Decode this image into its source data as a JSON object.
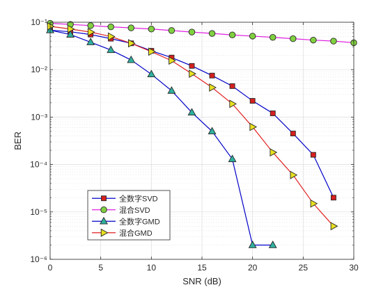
{
  "chart_data": {
    "type": "line",
    "xlabel": "SNR (dB)",
    "ylabel": "BER",
    "xlim": [
      0,
      30
    ],
    "ylim": [
      1e-06,
      0.1
    ],
    "yscale": "log",
    "grid": true,
    "minor_grid": true,
    "legend_position": "bottom-left",
    "x_ticks": [
      0,
      5,
      10,
      15,
      20,
      25,
      30
    ],
    "x_tick_labels": [
      "0",
      "5",
      "10",
      "15",
      "20",
      "25",
      "30"
    ],
    "y_ticks": [
      1e-06,
      1e-05,
      0.0001,
      0.001,
      0.01,
      0.1
    ],
    "y_tick_labels": [
      "10⁻⁶",
      "10⁻⁵",
      "10⁻⁴",
      "10⁻³",
      "10⁻²",
      "10⁻¹"
    ],
    "series": [
      {
        "name": "全数字SVD",
        "color": "#0000c8",
        "marker": "square",
        "marker_fill": "#d62020",
        "x": [
          0,
          2,
          4,
          6,
          8,
          10,
          12,
          14,
          16,
          18,
          20,
          22,
          24,
          26,
          28
        ],
        "y": [
          0.068,
          0.063,
          0.055,
          0.045,
          0.036,
          0.025,
          0.018,
          0.012,
          0.0075,
          0.0045,
          0.0022,
          0.0012,
          0.00045,
          0.00016,
          2e-05
        ]
      },
      {
        "name": "混合SVD",
        "color": "#e020e0",
        "marker": "circle",
        "marker_fill": "#80d040",
        "x": [
          0,
          2,
          4,
          6,
          8,
          10,
          12,
          14,
          16,
          18,
          20,
          22,
          24,
          26,
          28,
          30
        ],
        "y": [
          0.095,
          0.09,
          0.085,
          0.08,
          0.076,
          0.072,
          0.067,
          0.062,
          0.058,
          0.054,
          0.051,
          0.048,
          0.045,
          0.042,
          0.04,
          0.037
        ]
      },
      {
        "name": "全数字GMD",
        "color": "#0000c8",
        "marker": "triangle-up",
        "marker_fill": "#30b0a0",
        "x": [
          0,
          2,
          4,
          6,
          8,
          10,
          12,
          14,
          16,
          18,
          20,
          22
        ],
        "y": [
          0.068,
          0.055,
          0.038,
          0.026,
          0.016,
          0.008,
          0.0036,
          0.00125,
          0.0005,
          0.00013,
          2e-06,
          2e-06
        ]
      },
      {
        "name": "混合GMD",
        "color": "#e02020",
        "marker": "triangle-right",
        "marker_fill": "#e8e020",
        "x": [
          0,
          2,
          4,
          6,
          8,
          10,
          12,
          14,
          16,
          18,
          20,
          22,
          24,
          26,
          28
        ],
        "y": [
          0.082,
          0.072,
          0.062,
          0.05,
          0.036,
          0.024,
          0.0155,
          0.0082,
          0.0042,
          0.0019,
          0.00062,
          0.00018,
          6e-05,
          1.5e-05,
          5e-06
        ]
      }
    ]
  }
}
